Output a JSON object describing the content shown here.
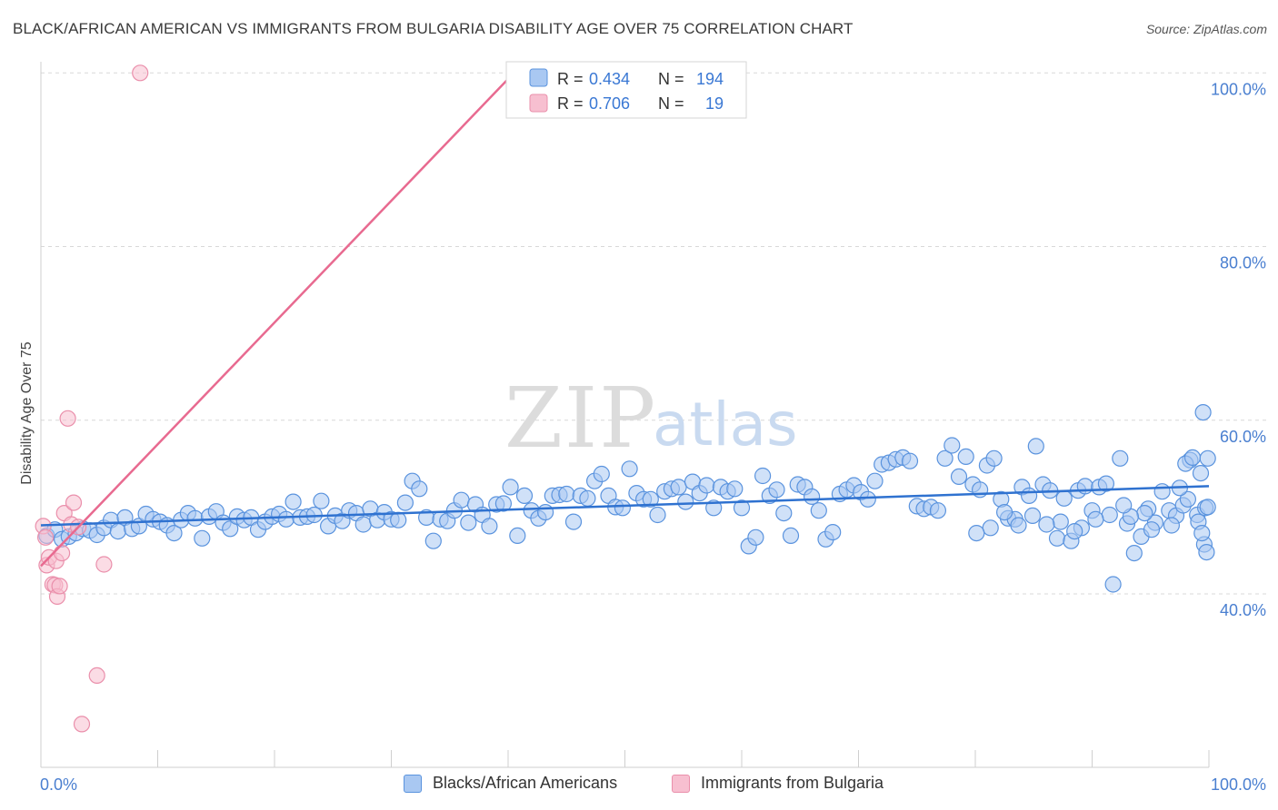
{
  "title": "BLACK/AFRICAN AMERICAN VS IMMIGRANTS FROM BULGARIA DISABILITY AGE OVER 75 CORRELATION CHART",
  "source": "Source: ZipAtlas.com",
  "watermark": {
    "zip": "ZIP",
    "atlas": "atlas"
  },
  "colors": {
    "blue_fill": "#a9c8f2",
    "blue_stroke": "#5a93de",
    "blue_line": "#2f72d0",
    "pink_fill": "#f7bfd0",
    "pink_stroke": "#ea8fab",
    "pink_line": "#e86a90",
    "axis_label": "#4a7fd0",
    "grid": "#d8d8d8"
  },
  "legend_top": {
    "items": [
      {
        "r_label": "R = ",
        "r_value": "0.434",
        "n_label": "N = ",
        "n_value": "194"
      },
      {
        "r_label": "R = ",
        "r_value": "0.706",
        "n_label": "N = ",
        "n_value": "19"
      }
    ]
  },
  "legend_bottom": [
    "Blacks/African Americans",
    "Immigrants from Bulgaria"
  ],
  "chart_data": {
    "type": "scatter",
    "ylabel": "Disability Age Over 75",
    "xlabel": "",
    "x_tick_labels": {
      "left": "0.0%",
      "right": "100.0%"
    },
    "y_tick_labels": [
      "40.0%",
      "60.0%",
      "80.0%",
      "100.0%"
    ],
    "y_ticks": [
      40,
      60,
      80,
      100
    ],
    "xlim": [
      0,
      100
    ],
    "ylim": [
      20,
      102
    ],
    "grid": true,
    "series": [
      {
        "name": "Blacks/African Americans",
        "R": 0.434,
        "N": 194,
        "trend": {
          "x": [
            0,
            100
          ],
          "y": [
            47.9,
            52.4
          ]
        },
        "points": [
          [
            0.5,
            46.7
          ],
          [
            1.2,
            47.4
          ],
          [
            1.8,
            46.3
          ],
          [
            2.4,
            46.6
          ],
          [
            3.0,
            47.0
          ],
          [
            3.6,
            47.5
          ],
          [
            4.2,
            47.3
          ],
          [
            4.8,
            46.8
          ],
          [
            5.4,
            47.6
          ],
          [
            6.0,
            48.5
          ],
          [
            6.6,
            47.2
          ],
          [
            7.2,
            48.8
          ],
          [
            7.8,
            47.5
          ],
          [
            8.4,
            47.8
          ],
          [
            9.0,
            49.2
          ],
          [
            9.6,
            48.6
          ],
          [
            10.2,
            48.3
          ],
          [
            10.8,
            47.9
          ],
          [
            11.4,
            47.0
          ],
          [
            12.0,
            48.5
          ],
          [
            12.6,
            49.3
          ],
          [
            13.2,
            48.7
          ],
          [
            13.8,
            46.4
          ],
          [
            14.4,
            48.9
          ],
          [
            15.0,
            49.5
          ],
          [
            15.6,
            48.2
          ],
          [
            16.2,
            47.5
          ],
          [
            16.8,
            48.9
          ],
          [
            17.4,
            48.5
          ],
          [
            18.0,
            48.8
          ],
          [
            18.6,
            47.4
          ],
          [
            19.2,
            48.3
          ],
          [
            19.8,
            48.9
          ],
          [
            20.4,
            49.2
          ],
          [
            21.0,
            48.6
          ],
          [
            21.6,
            50.6
          ],
          [
            22.2,
            48.8
          ],
          [
            22.8,
            48.9
          ],
          [
            23.4,
            49.1
          ],
          [
            24.0,
            50.7
          ],
          [
            24.6,
            47.8
          ],
          [
            25.2,
            49.0
          ],
          [
            25.8,
            48.4
          ],
          [
            26.4,
            49.6
          ],
          [
            27.0,
            49.3
          ],
          [
            27.6,
            48.0
          ],
          [
            28.2,
            49.8
          ],
          [
            28.8,
            48.5
          ],
          [
            29.4,
            49.4
          ],
          [
            30.0,
            48.6
          ],
          [
            30.6,
            48.5
          ],
          [
            31.2,
            50.5
          ],
          [
            31.8,
            53.0
          ],
          [
            32.4,
            52.1
          ],
          [
            33.0,
            48.8
          ],
          [
            33.6,
            46.1
          ],
          [
            34.2,
            48.6
          ],
          [
            34.8,
            48.4
          ],
          [
            35.4,
            49.6
          ],
          [
            36.0,
            50.8
          ],
          [
            36.6,
            48.2
          ],
          [
            37.2,
            50.3
          ],
          [
            37.8,
            49.1
          ],
          [
            38.4,
            47.8
          ],
          [
            39.0,
            50.3
          ],
          [
            39.6,
            50.4
          ],
          [
            40.2,
            52.3
          ],
          [
            40.8,
            46.7
          ],
          [
            41.4,
            51.3
          ],
          [
            42.0,
            49.6
          ],
          [
            42.6,
            48.7
          ],
          [
            43.2,
            49.4
          ],
          [
            43.8,
            51.3
          ],
          [
            44.4,
            51.4
          ],
          [
            45.0,
            51.5
          ],
          [
            45.6,
            48.3
          ],
          [
            46.2,
            51.3
          ],
          [
            46.8,
            51.0
          ],
          [
            47.4,
            53.0
          ],
          [
            48.0,
            53.8
          ],
          [
            48.6,
            51.3
          ],
          [
            49.2,
            50.0
          ],
          [
            49.8,
            49.9
          ],
          [
            50.4,
            54.4
          ],
          [
            51.0,
            51.6
          ],
          [
            51.6,
            50.9
          ],
          [
            52.2,
            50.9
          ],
          [
            52.8,
            49.1
          ],
          [
            53.4,
            51.8
          ],
          [
            54.0,
            52.1
          ],
          [
            54.6,
            52.3
          ],
          [
            55.2,
            50.6
          ],
          [
            55.8,
            52.9
          ],
          [
            56.4,
            51.6
          ],
          [
            57.0,
            52.5
          ],
          [
            57.6,
            49.9
          ],
          [
            58.2,
            52.3
          ],
          [
            58.8,
            51.8
          ],
          [
            59.4,
            52.1
          ],
          [
            60.0,
            49.9
          ],
          [
            60.6,
            45.5
          ],
          [
            61.2,
            46.5
          ],
          [
            61.8,
            53.6
          ],
          [
            62.4,
            51.3
          ],
          [
            63.0,
            52.0
          ],
          [
            63.6,
            49.3
          ],
          [
            64.2,
            46.7
          ],
          [
            64.8,
            52.6
          ],
          [
            65.4,
            52.3
          ],
          [
            66.0,
            51.2
          ],
          [
            66.6,
            49.6
          ],
          [
            67.2,
            46.3
          ],
          [
            67.8,
            47.1
          ],
          [
            68.4,
            51.5
          ],
          [
            69.0,
            52.0
          ],
          [
            69.6,
            52.5
          ],
          [
            70.2,
            51.7
          ],
          [
            70.8,
            50.9
          ],
          [
            71.4,
            53.0
          ],
          [
            72.0,
            54.9
          ],
          [
            72.6,
            55.1
          ],
          [
            73.2,
            55.5
          ],
          [
            73.8,
            55.7
          ],
          [
            74.4,
            55.3
          ],
          [
            75.0,
            50.1
          ],
          [
            75.6,
            49.8
          ],
          [
            76.2,
            50.0
          ],
          [
            76.8,
            49.6
          ],
          [
            77.4,
            55.6
          ],
          [
            78.0,
            57.1
          ],
          [
            78.6,
            53.5
          ],
          [
            79.2,
            55.8
          ],
          [
            79.8,
            52.6
          ],
          [
            80.4,
            52.0
          ],
          [
            81.0,
            54.8
          ],
          [
            81.6,
            55.6
          ],
          [
            82.2,
            50.9
          ],
          [
            82.8,
            48.7
          ],
          [
            83.4,
            48.6
          ],
          [
            84.0,
            52.3
          ],
          [
            84.6,
            51.3
          ],
          [
            85.2,
            57.0
          ],
          [
            85.8,
            52.6
          ],
          [
            86.4,
            51.9
          ],
          [
            87.0,
            46.4
          ],
          [
            87.6,
            51.0
          ],
          [
            88.2,
            46.1
          ],
          [
            88.8,
            51.9
          ],
          [
            89.4,
            52.4
          ],
          [
            90.0,
            49.6
          ],
          [
            90.6,
            52.3
          ],
          [
            91.2,
            52.7
          ],
          [
            91.8,
            41.1
          ],
          [
            92.4,
            55.6
          ],
          [
            93.0,
            48.1
          ],
          [
            93.6,
            44.7
          ],
          [
            94.2,
            46.6
          ],
          [
            94.8,
            49.8
          ],
          [
            95.4,
            48.2
          ],
          [
            96.0,
            51.8
          ],
          [
            96.6,
            49.6
          ],
          [
            97.2,
            49.0
          ],
          [
            97.8,
            50.2
          ],
          [
            98.4,
            55.4
          ],
          [
            99.0,
            49.1
          ],
          [
            99.6,
            45.7
          ],
          [
            98.0,
            55.0
          ],
          [
            98.6,
            55.7
          ],
          [
            99.3,
            53.9
          ],
          [
            99.7,
            49.9
          ],
          [
            99.1,
            48.3
          ],
          [
            99.4,
            47.0
          ],
          [
            99.8,
            44.8
          ],
          [
            99.9,
            50.0
          ],
          [
            99.5,
            60.9
          ],
          [
            99.9,
            55.6
          ],
          [
            98.2,
            50.9
          ],
          [
            97.5,
            52.2
          ],
          [
            96.8,
            47.9
          ],
          [
            95.1,
            47.4
          ],
          [
            94.5,
            49.3
          ],
          [
            93.3,
            48.9
          ],
          [
            92.7,
            50.2
          ],
          [
            91.5,
            49.1
          ],
          [
            90.3,
            48.6
          ],
          [
            89.1,
            47.6
          ],
          [
            88.5,
            47.2
          ],
          [
            87.3,
            48.3
          ],
          [
            86.1,
            48.0
          ],
          [
            84.9,
            49.0
          ],
          [
            83.7,
            47.9
          ],
          [
            82.5,
            49.4
          ],
          [
            81.3,
            47.6
          ],
          [
            80.1,
            47.0
          ]
        ]
      },
      {
        "name": "Immigrants from Bulgaria",
        "R": 0.706,
        "N": 19,
        "trend": {
          "x": [
            0,
            40.5
          ],
          "y": [
            43.2,
            100.0
          ]
        },
        "points": [
          [
            0.2,
            47.8
          ],
          [
            0.4,
            46.5
          ],
          [
            0.5,
            43.3
          ],
          [
            0.7,
            44.2
          ],
          [
            1.0,
            41.1
          ],
          [
            1.2,
            41.0
          ],
          [
            1.3,
            43.8
          ],
          [
            1.4,
            39.7
          ],
          [
            1.6,
            40.9
          ],
          [
            1.8,
            44.7
          ],
          [
            2.0,
            49.3
          ],
          [
            2.3,
            60.2
          ],
          [
            2.6,
            48.0
          ],
          [
            2.8,
            50.5
          ],
          [
            4.8,
            30.6
          ],
          [
            3.5,
            25.0
          ],
          [
            5.4,
            43.4
          ],
          [
            8.5,
            100.0
          ],
          [
            3.2,
            47.7
          ]
        ]
      }
    ]
  }
}
